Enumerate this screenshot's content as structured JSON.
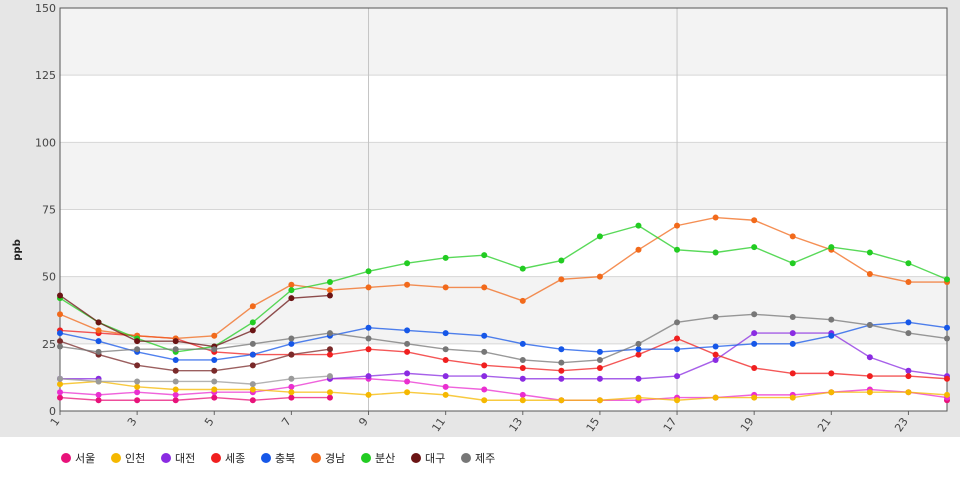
{
  "chart_data": {
    "type": "line",
    "ylabel": "ppb",
    "ylim": [
      0,
      150
    ],
    "yticks": [
      0,
      25,
      50,
      75,
      100,
      125,
      150
    ],
    "xlim": [
      1,
      24
    ],
    "xticks": [
      1,
      3,
      5,
      7,
      9,
      11,
      13,
      15,
      17,
      19,
      21,
      23
    ],
    "grid": true,
    "legend_position": "bottom",
    "x": [
      1,
      2,
      3,
      4,
      5,
      6,
      7,
      8,
      9,
      10,
      11,
      12,
      13,
      14,
      15,
      16,
      17,
      18,
      19,
      20,
      21,
      22,
      23,
      24
    ],
    "series": [
      {
        "name": "서울",
        "color": "#e8127a",
        "values": [
          5,
          4,
          4,
          4,
          5,
          4,
          5,
          5,
          null,
          null,
          null,
          null,
          null,
          null,
          null,
          4,
          null,
          null,
          null,
          null,
          null,
          null,
          null,
          4
        ]
      },
      {
        "name": "서울",
        "color": "#ea2fd0",
        "values": [
          7,
          6,
          7,
          6,
          7,
          7,
          9,
          12,
          12,
          11,
          9,
          8,
          6,
          4,
          4,
          4,
          5,
          5,
          6,
          6,
          7,
          8,
          7,
          5
        ]
      },
      {
        "name": "인천",
        "color": "#f5b800",
        "values": [
          10,
          11,
          9,
          8,
          8,
          8,
          7,
          7,
          6,
          7,
          6,
          4,
          4,
          4,
          4,
          5,
          4,
          5,
          5,
          5,
          7,
          7,
          7,
          6
        ]
      },
      {
        "name": "대전",
        "color": "#8a2be2",
        "values": [
          12,
          12,
          null,
          null,
          null,
          null,
          null,
          12,
          13,
          14,
          13,
          13,
          12,
          12,
          12,
          12,
          13,
          19,
          29,
          29,
          29,
          20,
          15,
          13
        ]
      },
      {
        "name": "세종",
        "color": "#f01f1f",
        "values": [
          30,
          29,
          28,
          27,
          22,
          21,
          21,
          21,
          23,
          22,
          19,
          17,
          16,
          15,
          16,
          21,
          27,
          21,
          16,
          14,
          14,
          13,
          13,
          12
        ]
      },
      {
        "name": "충북",
        "color": "#1657e8",
        "values": [
          29,
          26,
          22,
          19,
          19,
          21,
          25,
          28,
          31,
          30,
          29,
          28,
          25,
          23,
          22,
          23,
          23,
          24,
          25,
          25,
          28,
          32,
          33,
          31
        ]
      },
      {
        "name": "경남",
        "color": "#f26a1b",
        "values": [
          36,
          30,
          28,
          27,
          28,
          39,
          47,
          45,
          46,
          47,
          46,
          46,
          41,
          49,
          50,
          60,
          69,
          72,
          71,
          65,
          60,
          51,
          48,
          48
        ]
      },
      {
        "name": "분산",
        "color": "#22cc22",
        "values": [
          42,
          33,
          27,
          22,
          24,
          33,
          45,
          48,
          52,
          55,
          57,
          58,
          53,
          56,
          65,
          69,
          60,
          59,
          61,
          55,
          61,
          59,
          55,
          49
        ]
      },
      {
        "name": "대구",
        "color": "#6b1414",
        "values": [
          43,
          33,
          26,
          26,
          24,
          30,
          42,
          43,
          null,
          null,
          null,
          null,
          null,
          null,
          null,
          null,
          null,
          null,
          null,
          null,
          null,
          null,
          null,
          null
        ]
      },
      {
        "name": "대구",
        "color": "#7a2a2a",
        "values": [
          26,
          21,
          17,
          15,
          15,
          17,
          21,
          23,
          null,
          null,
          null,
          null,
          null,
          null,
          null,
          null,
          null,
          null,
          null,
          null,
          null,
          null,
          null,
          null
        ]
      },
      {
        "name": "제주",
        "color": "#777777",
        "values": [
          24,
          22,
          23,
          23,
          23,
          25,
          27,
          29,
          27,
          25,
          23,
          22,
          19,
          18,
          19,
          25,
          33,
          35,
          36,
          35,
          34,
          32,
          29,
          27
        ]
      },
      {
        "name": "제주",
        "color": "#9a9a9a",
        "values": [
          12,
          11,
          11,
          11,
          11,
          10,
          12,
          13,
          null,
          null,
          null,
          null,
          null,
          null,
          null,
          null,
          null,
          null,
          null,
          null,
          null,
          null,
          null,
          null
        ]
      }
    ],
    "legend": [
      {
        "name": "서울",
        "color": "#e8127a"
      },
      {
        "name": "인천",
        "color": "#f5b800"
      },
      {
        "name": "대전",
        "color": "#8a2be2"
      },
      {
        "name": "세종",
        "color": "#f01f1f"
      },
      {
        "name": "충북",
        "color": "#1657e8"
      },
      {
        "name": "경남",
        "color": "#f26a1b"
      },
      {
        "name": "분산",
        "color": "#22cc22"
      },
      {
        "name": "대구",
        "color": "#6b1414"
      },
      {
        "name": "제주",
        "color": "#777777"
      }
    ]
  }
}
